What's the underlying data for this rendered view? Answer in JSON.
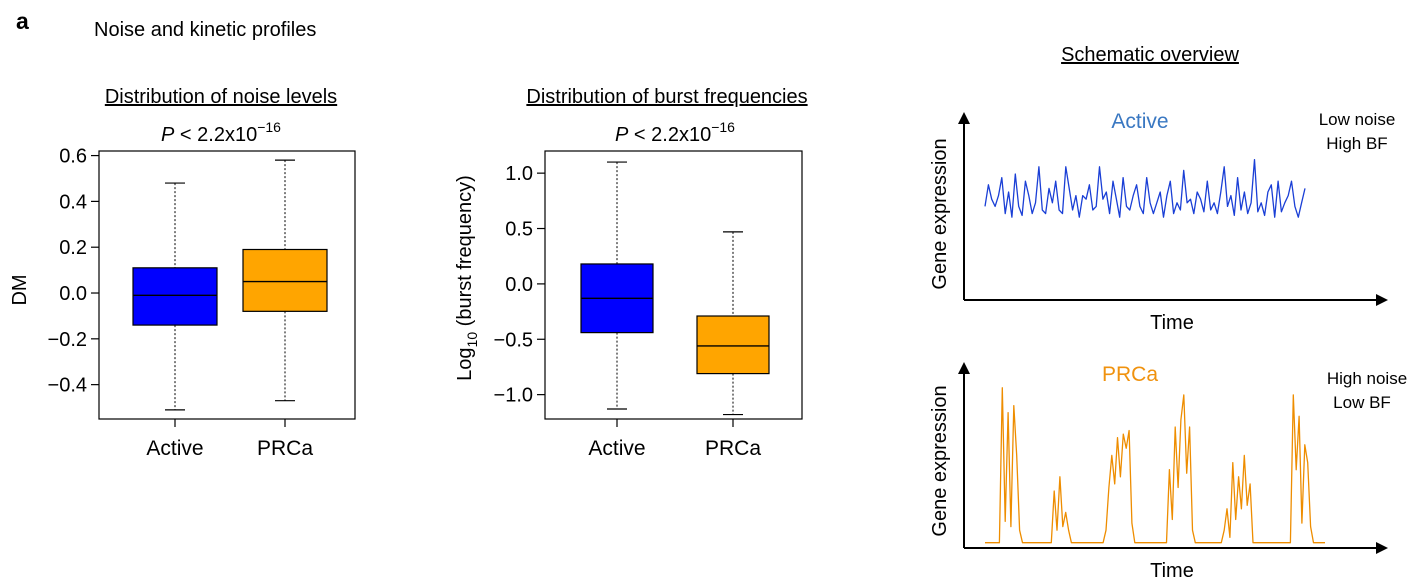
{
  "panel_label": "a",
  "section_title": "Noise and kinetic profiles",
  "chart_data": [
    {
      "type": "boxplot",
      "title": "Distribution of noise levels",
      "pvalue": {
        "prefix": "P",
        "rel": " < 2.2x10",
        "exp": "−16"
      },
      "ylabel": "DM",
      "ylim": [
        -0.55,
        0.62
      ],
      "yticks": [
        {
          "v": 0.6,
          "label": "0.6"
        },
        {
          "v": 0.4,
          "label": "0.4"
        },
        {
          "v": 0.2,
          "label": "0.2"
        },
        {
          "v": 0.0,
          "label": "0.0"
        },
        {
          "v": -0.2,
          "label": "−0.2"
        },
        {
          "v": -0.4,
          "label": "−0.4"
        }
      ],
      "groups": [
        {
          "name": "Active",
          "color": "#0000ff",
          "whislo": -0.51,
          "q1": -0.14,
          "median": -0.01,
          "q3": 0.11,
          "whishi": 0.48
        },
        {
          "name": "PRCa",
          "color": "#ffa500",
          "whislo": -0.47,
          "q1": -0.08,
          "median": 0.05,
          "q3": 0.19,
          "whishi": 0.58
        }
      ]
    },
    {
      "type": "boxplot",
      "title": "Distribution of burst frequencies",
      "pvalue": {
        "prefix": "P",
        "rel": " < 2.2x10",
        "exp": "−16"
      },
      "ylabel_main": "Log",
      "ylabel_sub": "10",
      "ylabel_rest": " (burst frequency)",
      "ylim": [
        -1.22,
        1.2
      ],
      "yticks": [
        {
          "v": 1.0,
          "label": "1.0"
        },
        {
          "v": 0.5,
          "label": "0.5"
        },
        {
          "v": 0.0,
          "label": "0.0"
        },
        {
          "v": -0.5,
          "label": "−0.5"
        },
        {
          "v": -1.0,
          "label": "−1.0"
        }
      ],
      "groups": [
        {
          "name": "Active",
          "color": "#0000ff",
          "whislo": -1.13,
          "q1": -0.44,
          "median": -0.13,
          "q3": 0.18,
          "whishi": 1.1
        },
        {
          "name": "PRCa",
          "color": "#ffa500",
          "whislo": -1.18,
          "q1": -0.81,
          "median": -0.56,
          "q3": -0.29,
          "whishi": 0.47
        }
      ]
    },
    {
      "type": "line",
      "title": "Schematic overview",
      "xlabel": "Time",
      "ylabel": "Gene expression",
      "series_label": "Active",
      "color": "#1a3fd6",
      "label_color": "#3a78c2",
      "note": [
        "Low noise",
        "High BF"
      ],
      "ylim": [
        0,
        10
      ],
      "y": [
        5.2,
        6.4,
        5.6,
        5.2,
        5.8,
        6.8,
        4.8,
        6.0,
        4.6,
        7.0,
        5.2,
        4.7,
        6.6,
        5.8,
        4.8,
        5.4,
        7.4,
        5.0,
        4.8,
        6.2,
        5.4,
        6.6,
        5.0,
        4.8,
        7.4,
        6.2,
        5.0,
        5.8,
        4.6,
        5.8,
        5.6,
        6.4,
        5.0,
        5.2,
        7.4,
        5.6,
        6.0,
        4.8,
        6.6,
        5.6,
        4.6,
        6.8,
        5.2,
        5.0,
        5.8,
        6.4,
        5.2,
        4.8,
        6.8,
        5.4,
        4.8,
        5.4,
        6.0,
        4.6,
        5.8,
        6.6,
        4.8,
        5.4,
        5.0,
        7.2,
        5.4,
        5.6,
        4.8,
        6.0,
        5.6,
        4.9,
        6.6,
        5.0,
        5.4,
        4.8,
        6.0,
        7.4,
        5.2,
        5.8,
        4.7,
        6.8,
        5.0,
        6.0,
        4.8,
        5.4,
        7.8,
        4.9,
        5.4,
        4.7,
        6.0,
        6.4,
        4.6,
        6.6,
        4.9,
        5.4,
        5.8,
        6.6,
        5.2,
        4.6,
        5.4,
        6.2
      ]
    },
    {
      "type": "line",
      "title": "",
      "xlabel": "Time",
      "ylabel": "Gene expression",
      "series_label": "PRCa",
      "color": "#ee8d00",
      "label_color": "#f0920e",
      "note": [
        "High noise",
        "Low BF"
      ],
      "ylim": [
        0,
        10
      ],
      "y": [
        0.3,
        0.3,
        0.3,
        0.3,
        0.3,
        0.3,
        9.0,
        1.5,
        7.6,
        1.2,
        8.0,
        5.2,
        1.0,
        0.3,
        0.3,
        0.3,
        0.3,
        0.3,
        0.3,
        0.3,
        0.3,
        0.3,
        0.3,
        0.3,
        3.2,
        1.0,
        4.0,
        1.2,
        2.0,
        1.0,
        0.3,
        0.3,
        0.3,
        0.3,
        0.3,
        0.3,
        0.3,
        0.3,
        0.3,
        0.3,
        0.3,
        0.3,
        1.0,
        3.4,
        5.2,
        3.6,
        6.2,
        4.0,
        6.4,
        5.6,
        6.6,
        1.4,
        0.3,
        0.3,
        0.3,
        0.3,
        0.3,
        0.3,
        0.3,
        0.3,
        0.3,
        0.3,
        0.3,
        0.3,
        4.4,
        1.6,
        6.8,
        3.4,
        7.2,
        8.6,
        4.2,
        6.8,
        1.0,
        0.3,
        0.3,
        0.3,
        0.3,
        0.3,
        0.3,
        0.3,
        0.3,
        0.3,
        0.3,
        1.0,
        2.2,
        0.6,
        4.8,
        1.6,
        4.0,
        2.2,
        5.2,
        2.4,
        3.6,
        0.3,
        0.3,
        0.3,
        0.3,
        0.3,
        0.3,
        0.3,
        0.3,
        0.3,
        0.3,
        0.3,
        0.3,
        0.3,
        0.3,
        8.6,
        4.4,
        7.4,
        1.4,
        5.8,
        4.8,
        1.2,
        0.3,
        0.3,
        0.3,
        0.3,
        0.3
      ]
    }
  ]
}
